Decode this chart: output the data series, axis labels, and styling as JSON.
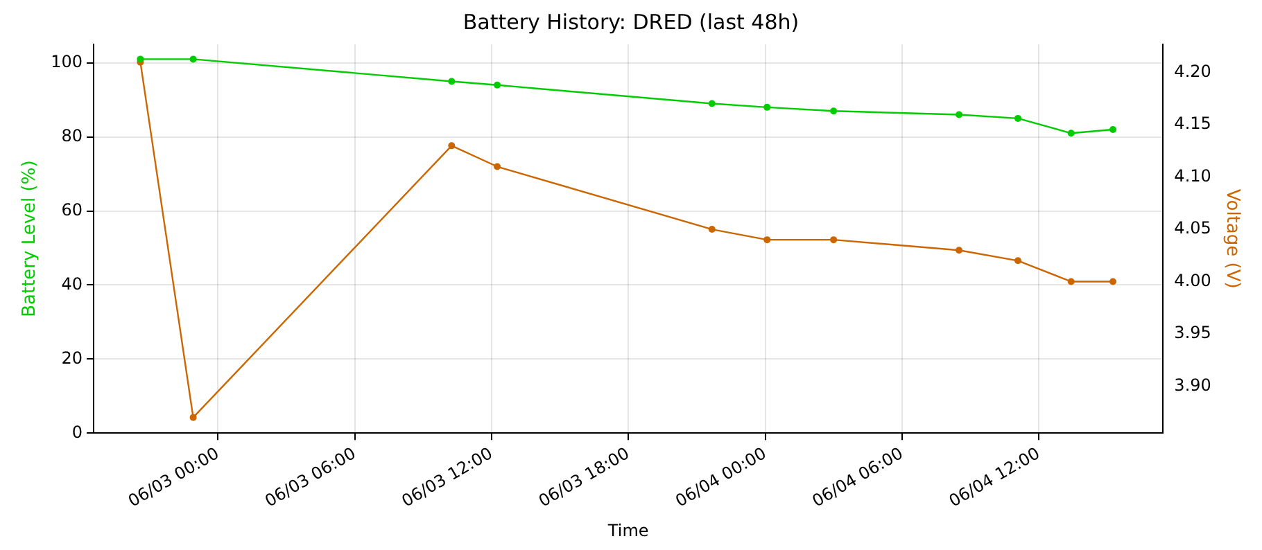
{
  "chart_data": {
    "type": "line",
    "title": "Battery History: DRED (last 48h)",
    "xlabel": "Time",
    "ylabel": "Battery Level (%)",
    "y2label": "Voltage (V)",
    "x": [
      "--06-02T20:36",
      "--06-02T22:55",
      "--06-03T10:15",
      "--06-03T12:15",
      "--06-03T21:40",
      "--06-04T00:05",
      "--06-04T03:00",
      "--06-04T08:30",
      "--06-04T11:05",
      "--06-04T13:25",
      "--06-04T15:15"
    ],
    "series": [
      {
        "name": null,
        "color": "#00cc00",
        "values": [
          101,
          101,
          95,
          94,
          89,
          88,
          87,
          86,
          85,
          81,
          82
        ]
      },
      {
        "name": null,
        "color": "#cc6600",
        "axis": "y2",
        "values": [
          4.21,
          3.87,
          4.13,
          4.11,
          4.05,
          4.04,
          4.04,
          4.03,
          4.02,
          4.0,
          4.0
        ]
      }
    ],
    "xlim": [
      "--06-02T18:33",
      "--06-04T17:27"
    ],
    "xticks": [
      {
        "value": "--06-03T00:00",
        "label": "06/03 00:00"
      },
      {
        "value": "--06-03T06:00",
        "label": "06/03 06:00"
      },
      {
        "value": "--06-03T12:00",
        "label": "06/03 12:00"
      },
      {
        "value": "--06-03T18:00",
        "label": "06/03 18:00"
      },
      {
        "value": "--06-04T00:00",
        "label": "06/04 00:00"
      },
      {
        "value": "--06-04T06:00",
        "label": "06/04 06:00"
      },
      {
        "value": "--06-04T12:00",
        "label": "06/04 12:00"
      }
    ],
    "ylim": [
      0,
      105
    ],
    "yticks": [
      0,
      20,
      40,
      60,
      80,
      100
    ],
    "y2lim": [
      3.855,
      4.227
    ],
    "y2ticks": [
      {
        "value": 3.9,
        "label": "3.90"
      },
      {
        "value": 3.95,
        "label": "3.95"
      },
      {
        "value": 4.0,
        "label": "4.00"
      },
      {
        "value": 4.05,
        "label": "4.05"
      },
      {
        "value": 4.1,
        "label": "4.10"
      },
      {
        "value": 4.15,
        "label": "4.15"
      },
      {
        "value": 4.2,
        "label": "4.20"
      }
    ],
    "grid": true,
    "legend": false,
    "marker": "circle",
    "line_style": "solid"
  }
}
